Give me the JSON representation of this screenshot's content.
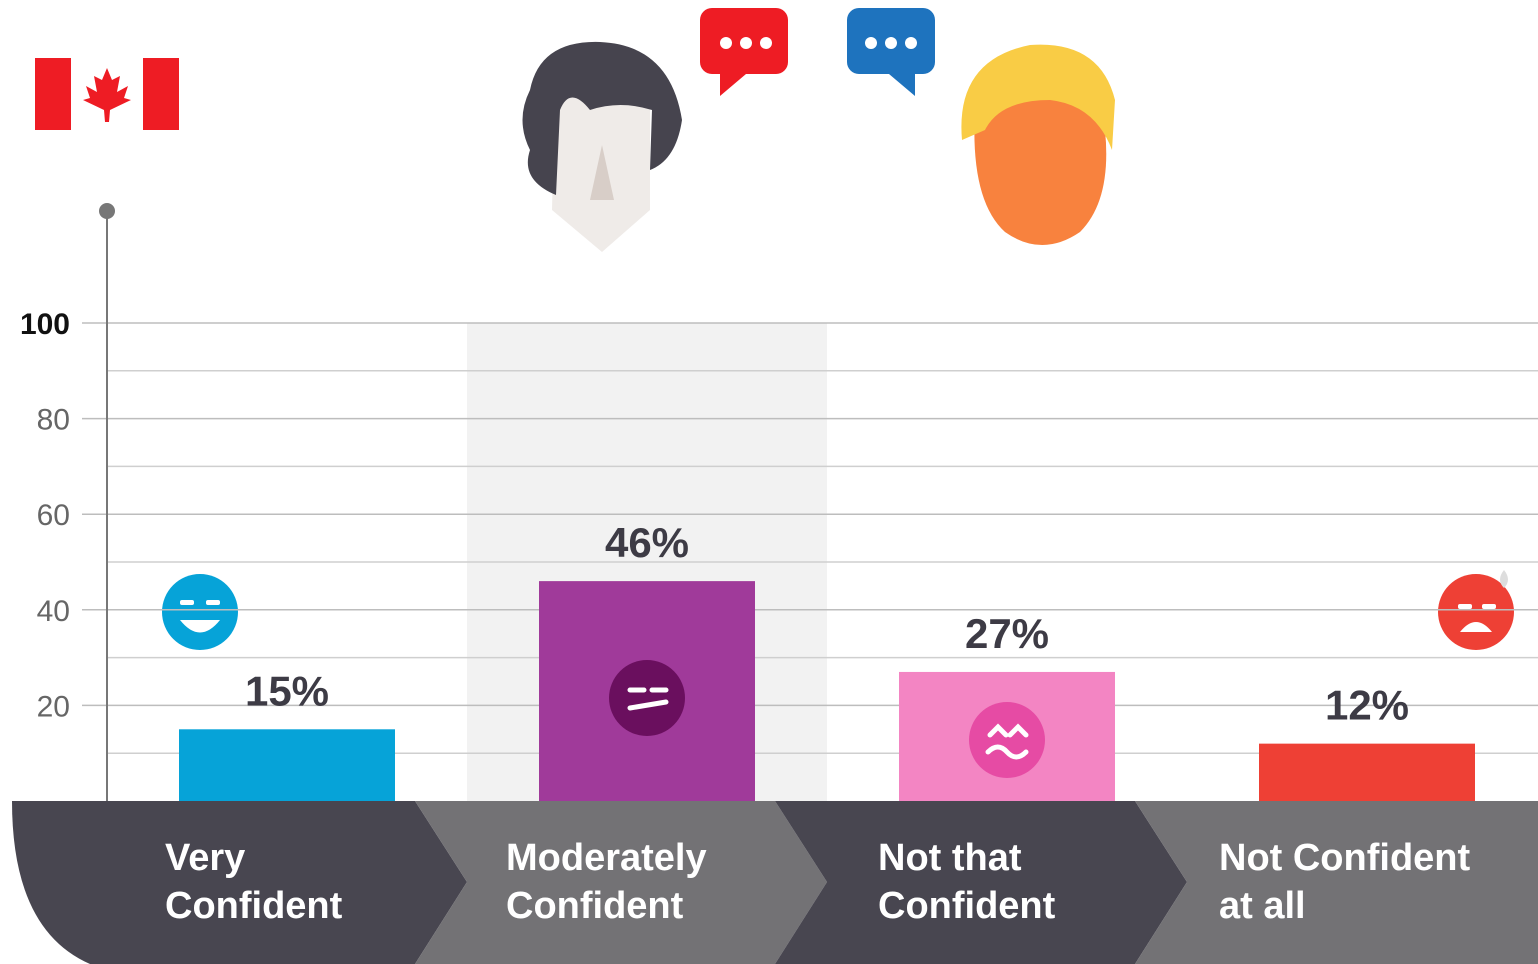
{
  "chart_data": {
    "type": "bar",
    "categories": [
      "Very\nConfident",
      "Moderately\nConfident",
      "Not that\nConfident",
      "Not Confident\nat all"
    ],
    "values": [
      15,
      46,
      27,
      12
    ],
    "value_labels": [
      "15%",
      "46%",
      "27%",
      "12%"
    ],
    "colors": [
      "#06a3d8",
      "#a03a9a",
      "#f385c3",
      "#ee4035"
    ],
    "ylim": [
      0,
      100
    ],
    "yticks": [
      20,
      40,
      60,
      80,
      100
    ],
    "minor_yticks": [
      10,
      30,
      50,
      70,
      90
    ],
    "grid": true
  }
}
